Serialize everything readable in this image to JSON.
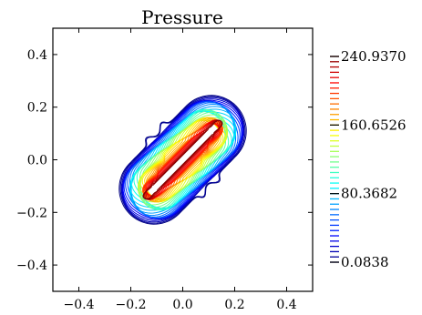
{
  "chart_data": {
    "type": "contour",
    "title": "Pressure",
    "xlabel": "",
    "ylabel": "",
    "xlim": [
      -0.5,
      0.5
    ],
    "ylim": [
      -0.5,
      0.5
    ],
    "x_ticks": [
      -0.4,
      -0.2,
      0.0,
      0.2,
      0.4
    ],
    "x_tick_labels": [
      "−0.4",
      "−0.2",
      "0.0",
      "0.2",
      "0.4"
    ],
    "y_ticks": [
      0.4,
      0.2,
      0.0,
      -0.2,
      -0.4
    ],
    "y_tick_labels": [
      "0.4",
      "0.2",
      "0.0",
      "−0.2",
      "−0.4"
    ],
    "colormap": "jet",
    "levels": {
      "min": 0.0838,
      "max": 240.937,
      "count": 40
    },
    "colorbar": {
      "ticks": [
        240.937,
        160.6526,
        80.3682,
        0.0838
      ],
      "tick_labels": [
        "240.9370",
        "160.6526",
        "80.3682",
        "0.0838"
      ]
    },
    "shape": {
      "description_free": true,
      "axis_angle_deg": 45,
      "capsule_half_length": 0.155,
      "capsule_radius": 0.135,
      "peak_lobes": [
        [
          0.22,
          0.17
        ],
        [
          -0.22,
          -0.17
        ]
      ]
    },
    "grid": false
  }
}
